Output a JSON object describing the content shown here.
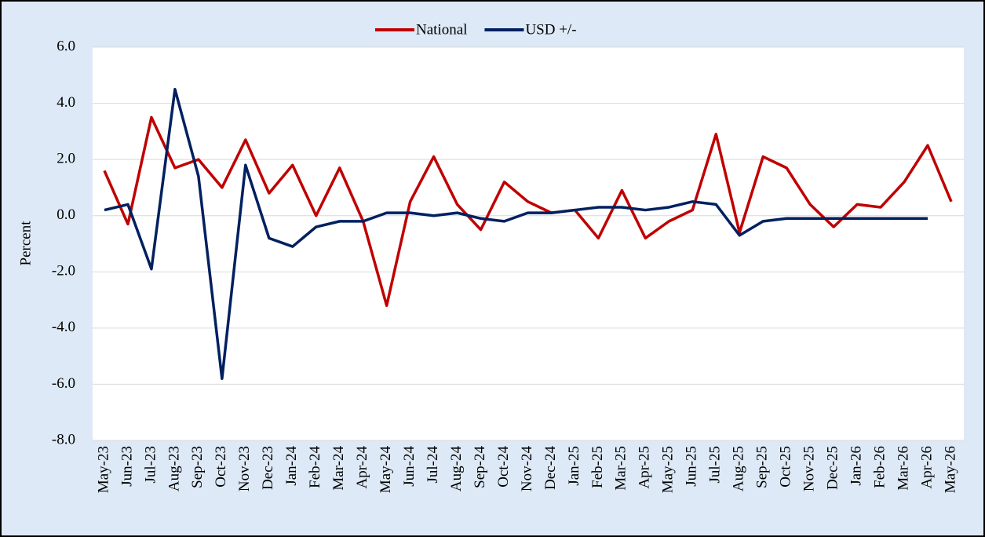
{
  "chart_data": {
    "type": "line",
    "y_label": "Percent",
    "categories": [
      "May-23",
      "Jun-23",
      "Jul-23",
      "Aug-23",
      "Sep-23",
      "Oct-23",
      "Nov-23",
      "Dec-23",
      "Jan-24",
      "Feb-24",
      "Mar-24",
      "Apr-24",
      "May-24",
      "Jun-24",
      "Jul-24",
      "Aug-24",
      "Sep-24",
      "Oct-24",
      "Nov-24",
      "Dec-24",
      "Jan-25",
      "Feb-25",
      "Mar-25",
      "Apr-25",
      "May-25",
      "Jun-25",
      "Jul-25",
      "Aug-25",
      "Sep-25",
      "Oct-25",
      "Nov-25",
      "Dec-25",
      "Jan-26",
      "Feb-26",
      "Mar-26",
      "Apr-26",
      "May-26"
    ],
    "series": [
      {
        "name": "National",
        "color": "#c00000",
        "values": [
          1.6,
          -0.3,
          3.5,
          1.7,
          2.0,
          1.0,
          2.7,
          0.8,
          1.8,
          0.0,
          1.7,
          -0.2,
          -3.2,
          0.5,
          2.1,
          0.4,
          -0.5,
          1.2,
          0.5,
          0.1,
          0.2,
          -0.8,
          0.9,
          -0.8,
          -0.2,
          0.2,
          2.9,
          -0.6,
          2.1,
          1.7,
          0.4,
          -0.4,
          0.4,
          0.3,
          1.2,
          2.5,
          0.5
        ]
      },
      {
        "name": "USD +/-",
        "color": "#002060",
        "values": [
          0.2,
          0.4,
          -1.9,
          4.5,
          1.4,
          -5.8,
          1.8,
          -0.8,
          -1.1,
          -0.4,
          -0.2,
          -0.2,
          0.1,
          0.1,
          0.0,
          0.1,
          -0.1,
          -0.2,
          0.1,
          0.1,
          0.2,
          0.3,
          0.3,
          0.2,
          0.3,
          0.5,
          0.4,
          -0.7,
          -0.2,
          -0.1,
          -0.1,
          -0.1,
          -0.1,
          -0.1,
          -0.1,
          -0.1,
          null
        ]
      }
    ],
    "ylim": [
      -8,
      6
    ],
    "yticks": [
      {
        "value": -8,
        "label": "-8.0"
      },
      {
        "value": -6,
        "label": "-6.0"
      },
      {
        "value": -4,
        "label": "-4.0"
      },
      {
        "value": -2,
        "label": "-2.0"
      },
      {
        "value": 0,
        "label": "0.0"
      },
      {
        "value": 2,
        "label": "2.0"
      },
      {
        "value": 4,
        "label": "4.0"
      },
      {
        "value": 6,
        "label": "6.0"
      }
    ],
    "grid": true,
    "legend": "top"
  }
}
